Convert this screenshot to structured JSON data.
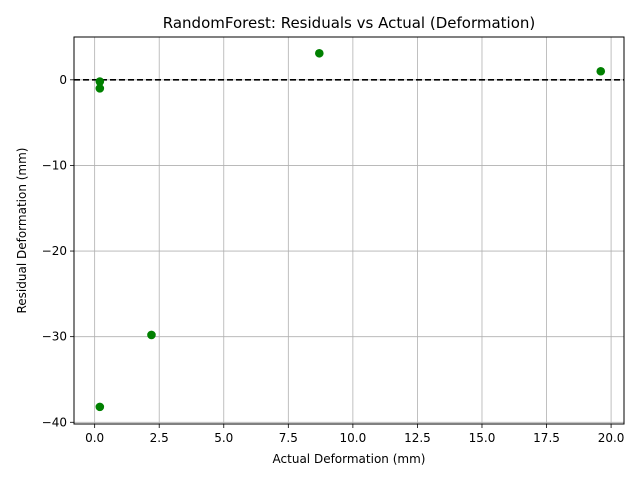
{
  "chart_data": {
    "type": "scatter",
    "title": "RandomForest: Residuals vs Actual (Deformation)",
    "xlabel": "Actual Deformation (mm)",
    "ylabel": "Residual Deformation (mm)",
    "xlim": [
      -0.8,
      20.5
    ],
    "ylim": [
      -40.2,
      5.0
    ],
    "xticks": [
      0.0,
      2.5,
      5.0,
      7.5,
      10.0,
      12.5,
      15.0,
      17.5,
      20.0
    ],
    "xtick_labels": [
      "0.0",
      "2.5",
      "5.0",
      "7.5",
      "10.0",
      "12.5",
      "15.0",
      "17.5",
      "20.0"
    ],
    "yticks": [
      0,
      -10,
      -20,
      -30,
      -40
    ],
    "ytick_labels": [
      "0",
      "−10",
      "−20",
      "−30",
      "−40"
    ],
    "grid": true,
    "reference_line": {
      "y": 0,
      "style": "dashed",
      "color": "#000000"
    },
    "point_color": "#008000",
    "points": [
      {
        "x": 0.2,
        "y": -0.2
      },
      {
        "x": 0.2,
        "y": -1.0
      },
      {
        "x": 0.2,
        "y": -38.2
      },
      {
        "x": 2.2,
        "y": -29.8
      },
      {
        "x": 8.7,
        "y": 3.1
      },
      {
        "x": 19.6,
        "y": 1.0
      }
    ]
  }
}
